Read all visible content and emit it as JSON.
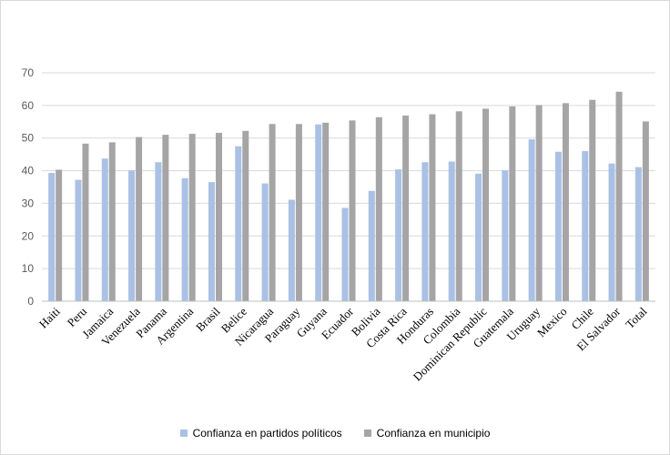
{
  "chart_data": {
    "type": "bar",
    "categories": [
      "Haiti",
      "Peru",
      "Jamaica",
      "Venezuela",
      "Panama",
      "Argentina",
      "Brasil",
      "Belice",
      "Nicaragua",
      "Paraguay",
      "Guyana",
      "Ecuador",
      "Bolivia",
      "Costa Rica",
      "Honduras",
      "Colombia",
      "Dominican Republic",
      "Guatemala",
      "Uruguay",
      "Mexico",
      "Chile",
      "El Salvador",
      "Total"
    ],
    "series": [
      {
        "name": "Confianza en partidos políticos",
        "color": "#a9c1e6",
        "values": [
          39.3,
          37.2,
          43.7,
          40.1,
          42.6,
          37.7,
          36.5,
          47.5,
          36.1,
          31.1,
          54.2,
          28.6,
          33.8,
          40.4,
          42.6,
          42.8,
          39.1,
          40.1,
          49.6,
          45.8,
          46.0,
          42.2,
          41.1
        ]
      },
      {
        "name": "Confianza en municipio",
        "color": "#a5a5a5",
        "values": [
          40.3,
          48.3,
          48.7,
          50.3,
          51.0,
          51.3,
          51.6,
          52.2,
          54.3,
          54.3,
          54.7,
          55.4,
          56.4,
          56.9,
          57.3,
          58.2,
          59.0,
          59.7,
          60.1,
          60.7,
          61.7,
          64.2,
          55.1
        ]
      }
    ],
    "y_ticks": [
      "0",
      "10",
      "20",
      "30",
      "40",
      "50",
      "60",
      "70"
    ],
    "ylim": [
      0,
      70
    ],
    "grid": true,
    "legend_position": "bottom"
  }
}
